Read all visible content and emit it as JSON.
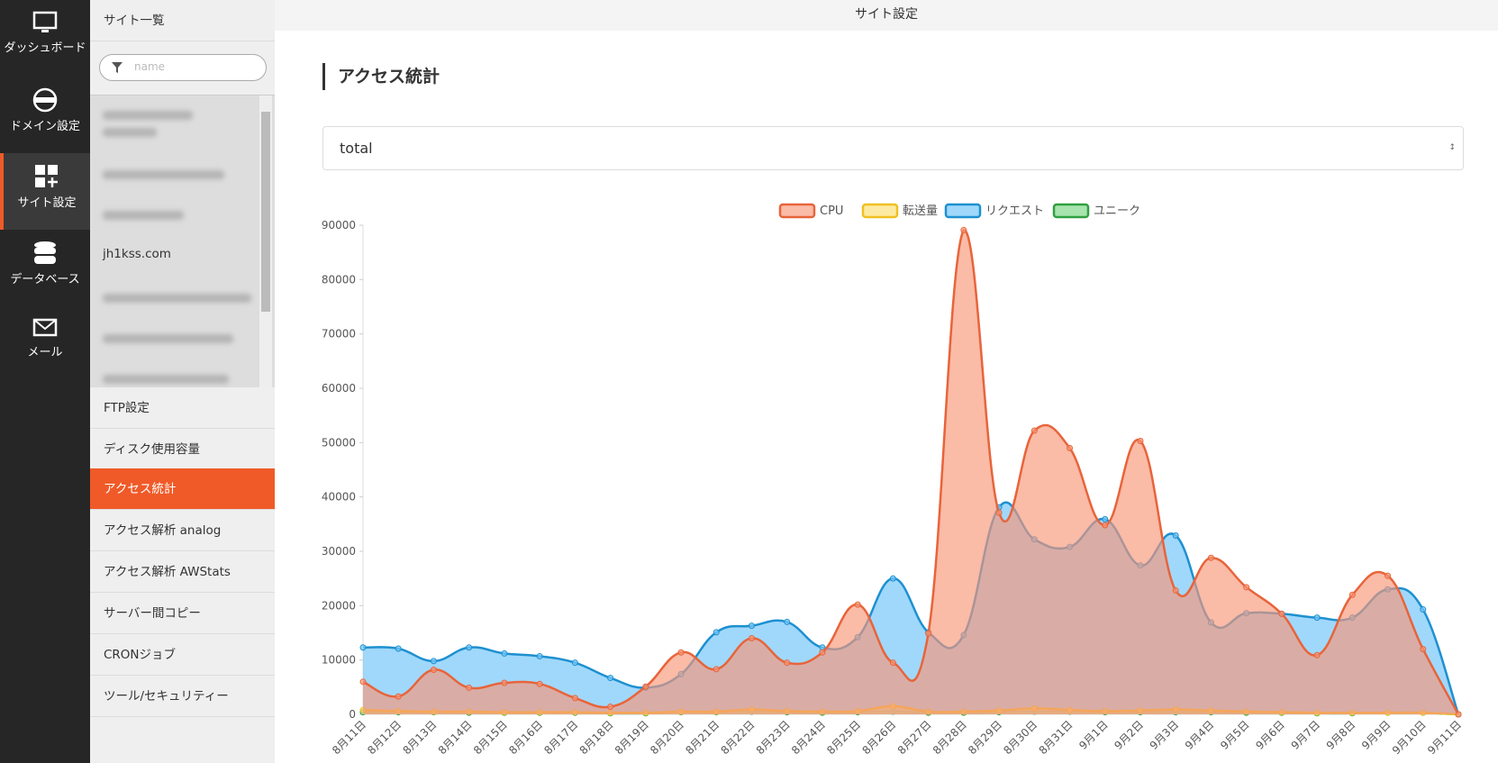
{
  "nav": [
    "ダッシュボード",
    "ドメイン設定",
    "サイト設定",
    "データベース",
    "メール"
  ],
  "site_list": {
    "title": "サイト一覧",
    "search_placeholder": "name",
    "sites": [
      "jh1kss.com"
    ]
  },
  "menu": [
    "FTP設定",
    "ディスク使用容量",
    "アクセス統計",
    "アクセス解析 analog",
    "アクセス解析 AWStats",
    "サーバー間コピー",
    "CRONジョブ",
    "ツール/セキュリティー"
  ],
  "header": {
    "title": "サイト設定"
  },
  "page_title": "アクセス統計",
  "select": "total",
  "chart_data": {
    "type": "area",
    "legend": "top",
    "categories": [
      "8月11日",
      "8月12日",
      "8月13日",
      "8月14日",
      "8月15日",
      "8月16日",
      "8月17日",
      "8月18日",
      "8月19日",
      "8月20日",
      "8月21日",
      "8月22日",
      "8月23日",
      "8月24日",
      "8月25日",
      "8月26日",
      "8月27日",
      "8月28日",
      "8月29日",
      "8月30日",
      "8月31日",
      "9月1日",
      "9月2日",
      "9月3日",
      "9月4日",
      "9月5日",
      "9月6日",
      "9月7日",
      "9月8日",
      "9月9日",
      "9月10日",
      "9月11日"
    ],
    "series": [
      {
        "name": "CPU",
        "color": "#e8643a",
        "fill": "rgba(247,150,120,0.65)",
        "values": [
          6000,
          3300,
          8200,
          4900,
          5800,
          5600,
          3000,
          1400,
          5100,
          11400,
          8300,
          14000,
          9500,
          11400,
          20200,
          9500,
          14900,
          89100,
          37100,
          52200,
          49000,
          34800,
          50300,
          22800,
          28800,
          23400,
          18500,
          10900,
          22000,
          25500,
          12000,
          0
        ]
      },
      {
        "name": "転送量",
        "color": "#f0c020",
        "fill": "rgba(250,220,100,0.6)",
        "values": [
          800,
          600,
          500,
          500,
          400,
          400,
          400,
          300,
          300,
          500,
          500,
          900,
          600,
          500,
          600,
          1500,
          500,
          500,
          700,
          1100,
          800,
          600,
          700,
          900,
          700,
          500,
          400,
          300,
          300,
          300,
          300,
          0
        ]
      },
      {
        "name": "リクエスト",
        "color": "#1e90d0",
        "fill": "rgba(120,200,250,0.7)",
        "values": [
          12300,
          12100,
          9800,
          12300,
          11200,
          10700,
          9500,
          6700,
          4900,
          7400,
          15100,
          16300,
          17000,
          12300,
          14200,
          25000,
          15100,
          14600,
          38100,
          32200,
          30800,
          35900,
          27400,
          32900,
          16900,
          18600,
          18500,
          17800,
          17800,
          23000,
          19300,
          0
        ]
      },
      {
        "name": "ユニーク",
        "color": "#30a040",
        "fill": "rgba(110,210,120,0.6)",
        "values": [
          400,
          400,
          400,
          300,
          300,
          300,
          300,
          200,
          200,
          400,
          400,
          500,
          400,
          300,
          400,
          500,
          300,
          300,
          400,
          500,
          500,
          400,
          400,
          400,
          400,
          300,
          300,
          200,
          200,
          300,
          300,
          0
        ]
      }
    ],
    "ylim": [
      0,
      90000
    ],
    "yticks": [
      0,
      10000,
      20000,
      30000,
      40000,
      50000,
      60000,
      70000,
      80000,
      90000
    ],
    "grid": false
  }
}
